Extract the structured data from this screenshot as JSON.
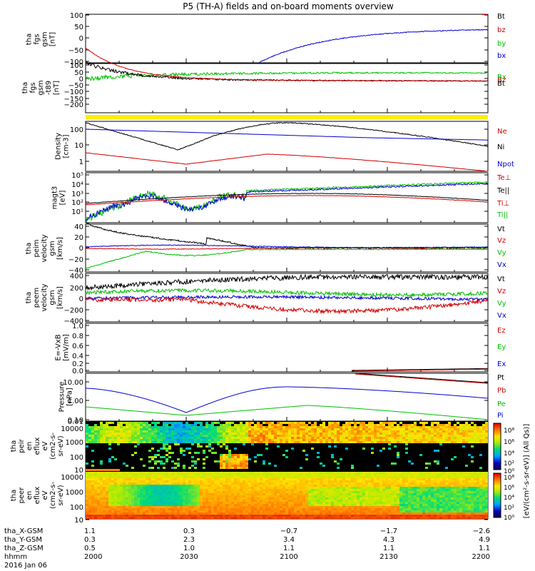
{
  "title": "P5 (TH-A) fields and on-board moments overview",
  "chart_data": [
    {
      "type": "line",
      "ylabel": [
        "tha",
        "fgs",
        "gsm",
        "[nT]"
      ],
      "ylim": [
        -100,
        100
      ],
      "yticks": [
        "100",
        "50",
        "0",
        "−50",
        "−100"
      ],
      "legend": [
        {
          "name": "Bt",
          "color": "#000000"
        },
        {
          "name": "bz",
          "color": "#d40000"
        },
        {
          "name": "by",
          "color": "#00c000"
        },
        {
          "name": "bx",
          "color": "#0000d0"
        }
      ]
    },
    {
      "type": "line",
      "ylabel": [
        "tha",
        "fgs",
        "gsm",
        "-t89",
        "[nT]"
      ],
      "ylim": [
        -200,
        100
      ],
      "yticks": [
        "100",
        "50",
        "0",
        "−50",
        "−100",
        "−150",
        "−200"
      ],
      "legend": [
        {
          "name": "Bx",
          "color": "#00c000"
        },
        {
          "name": "Bz",
          "color": "#d40000"
        },
        {
          "name": "Bt",
          "color": "#000000"
        }
      ]
    },
    {
      "type": "line",
      "ylabel": [
        "Density",
        "[cm-3]"
      ],
      "ylim": [
        0.3,
        300
      ],
      "yticks": [
        "100",
        "10",
        "1"
      ],
      "legend": [
        {
          "name": "Ne",
          "color": "#d40000"
        },
        {
          "name": "Ni",
          "color": "#000000"
        },
        {
          "name": "Npot",
          "color": "#0000d0"
        }
      ]
    },
    {
      "type": "line",
      "ylabel": [
        "magt3",
        "[eV]"
      ],
      "ylim": [
        3,
        300000
      ],
      "yticks": [
        "10⁵",
        "10⁴",
        "10³",
        "10²",
        "10¹"
      ],
      "legend": [
        {
          "name": "Te⊥",
          "color": "#d40000"
        },
        {
          "name": "Te||",
          "color": "#000000"
        },
        {
          "name": "Ti⊥",
          "color": "#d40000"
        },
        {
          "name": "Ti||",
          "color": "#00c000"
        }
      ]
    },
    {
      "type": "line",
      "ylabel": [
        "tha",
        "peim",
        "velocity",
        "gsm",
        "[km/s]"
      ],
      "ylim": [
        -40,
        40
      ],
      "yticks": [
        "40",
        "20",
        "0",
        "−20",
        "−40"
      ],
      "legend": [
        {
          "name": "Vt",
          "color": "#000000"
        },
        {
          "name": "Vz",
          "color": "#d40000"
        },
        {
          "name": "Vy",
          "color": "#00c000"
        },
        {
          "name": "Vx",
          "color": "#0000d0"
        }
      ]
    },
    {
      "type": "line",
      "ylabel": [
        "tha",
        "peem",
        "velocity",
        "gsm",
        "[km/s]"
      ],
      "ylim": [
        -400,
        400
      ],
      "yticks": [
        "400",
        "200",
        "0",
        "−200",
        "−400"
      ],
      "legend": [
        {
          "name": "Vt",
          "color": "#000000"
        },
        {
          "name": "Vz",
          "color": "#d40000"
        },
        {
          "name": "Vy",
          "color": "#00c000"
        },
        {
          "name": "Vx",
          "color": "#0000d0"
        }
      ]
    },
    {
      "type": "line",
      "ylabel": [
        "E=-VxB",
        "[mV/m]"
      ],
      "ylim": [
        0,
        1
      ],
      "yticks": [
        "1.0",
        "0.8",
        "0.6",
        "0.4",
        "0.2",
        "0.0"
      ],
      "legend": [
        {
          "name": "Ez",
          "color": "#d40000"
        },
        {
          "name": "Ey",
          "color": "#00c000"
        },
        {
          "name": "Ex",
          "color": "#0000d0"
        }
      ]
    },
    {
      "type": "line",
      "ylabel": [
        "Pressure",
        "[nPa]"
      ],
      "ylim": [
        0.007,
        30
      ],
      "yticks": [
        "10.00",
        "1.00",
        "0.10",
        "0.01"
      ],
      "legend": [
        {
          "name": "Pt",
          "color": "#000000"
        },
        {
          "name": "Pb",
          "color": "#d40000"
        },
        {
          "name": "Pe",
          "color": "#00c000"
        },
        {
          "name": "Pi",
          "color": "#0000d0"
        }
      ]
    },
    {
      "type": "heatmap",
      "ylabel": [
        "tha",
        "peir",
        "en",
        "eflux",
        "eV",
        "(cm2-s-",
        "sr-eV)"
      ],
      "yticks": [
        "10000",
        "1000",
        "100",
        "10"
      ]
    },
    {
      "type": "heatmap",
      "ylabel": [
        "tha",
        "peer",
        "en",
        "eflux",
        "eV",
        "(cm2-s-",
        "sr-eV)"
      ],
      "yticks": [
        "10000",
        "1000",
        "100",
        "10"
      ]
    }
  ],
  "colorbars": [
    {
      "ticks": [
        "10⁸",
        "10⁶",
        "10⁴",
        "10²",
        "10⁰"
      ]
    },
    {
      "ticks": [
        "10⁸",
        "10⁶",
        "10⁴",
        "10²",
        "10⁰"
      ]
    }
  ],
  "colorbar_label": "[eV/(cm²-s-sr-eV)] (All Qs)]",
  "time_axis": {
    "row_labels": [
      "tha_X-GSM",
      "tha_Y-GSM",
      "tha_Z-GSM",
      "hhmm",
      "2016 Jan 06"
    ],
    "ticks": [
      {
        "x_gsm": "1.1",
        "y_gsm": "0.3",
        "z_gsm": "0.5",
        "hhmm": "2000"
      },
      {
        "x_gsm": "0.3",
        "y_gsm": "2.3",
        "z_gsm": "1.0",
        "hhmm": "2030"
      },
      {
        "x_gsm": "−0.7",
        "y_gsm": "3.4",
        "z_gsm": "1.1",
        "hhmm": "2100"
      },
      {
        "x_gsm": "−1.7",
        "y_gsm": "4.3",
        "z_gsm": "1.1",
        "hhmm": "2130"
      },
      {
        "x_gsm": "−2.6",
        "y_gsm": "4.9",
        "z_gsm": "1.1",
        "hhmm": "2200"
      }
    ]
  }
}
